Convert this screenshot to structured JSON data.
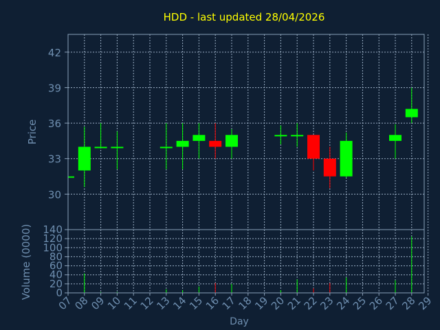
{
  "chart_data": [
    {
      "type": "candlestick",
      "title": "HDD - last updated 28/04/2026",
      "xlabel": "Day",
      "ylabel": "Price",
      "x_tick_labels": [
        "07",
        "08",
        "09",
        "10",
        "11",
        "12",
        "13",
        "14",
        "15",
        "16",
        "17",
        "18",
        "19",
        "20",
        "21",
        "22",
        "23",
        "24",
        "25",
        "26",
        "27",
        "28",
        "29"
      ],
      "y_tick_labels": [
        "30",
        "33",
        "36",
        "39",
        "42"
      ],
      "ylim": [
        27.0,
        43.5
      ],
      "grid": true,
      "up_color": "#00ff00",
      "down_color": "#ff0000",
      "candles": [
        {
          "day": "07",
          "open": 31.5,
          "high": 31.5,
          "low": 31.5,
          "close": 31.5
        },
        {
          "day": "08",
          "open": 32.0,
          "high": 35.7,
          "low": 30.6,
          "close": 34.0
        },
        {
          "day": "09",
          "open": 33.9,
          "high": 36.0,
          "low": 33.9,
          "close": 34.0
        },
        {
          "day": "10",
          "open": 33.9,
          "high": 35.3,
          "low": 32.1,
          "close": 34.0
        },
        {
          "day": "13",
          "open": 33.9,
          "high": 36.0,
          "low": 32.1,
          "close": 34.0
        },
        {
          "day": "14",
          "open": 34.0,
          "high": 36.0,
          "low": 32.1,
          "close": 34.5
        },
        {
          "day": "15",
          "open": 34.5,
          "high": 36.0,
          "low": 33.0,
          "close": 35.0
        },
        {
          "day": "16",
          "open": 34.5,
          "high": 36.0,
          "low": 33.0,
          "close": 34.0
        },
        {
          "day": "17",
          "open": 34.0,
          "high": 35.5,
          "low": 33.0,
          "close": 35.0
        },
        {
          "day": "20",
          "open": 35.0,
          "high": 35.8,
          "low": 34.2,
          "close": 35.0
        },
        {
          "day": "21",
          "open": 35.0,
          "high": 36.0,
          "low": 34.0,
          "close": 35.0
        },
        {
          "day": "22",
          "open": 35.0,
          "high": 35.0,
          "low": 32.0,
          "close": 33.0
        },
        {
          "day": "23",
          "open": 33.0,
          "high": 34.0,
          "low": 30.5,
          "close": 31.5
        },
        {
          "day": "24",
          "open": 31.5,
          "high": 35.2,
          "low": 31.4,
          "close": 34.5
        },
        {
          "day": "27",
          "open": 34.5,
          "high": 35.9,
          "low": 33.0,
          "close": 35.0
        },
        {
          "day": "28",
          "open": 36.5,
          "high": 39.0,
          "low": 36.0,
          "close": 37.2
        }
      ]
    },
    {
      "type": "bar",
      "ylabel": "Volume (0000)",
      "y_tick_labels": [
        "0",
        "20",
        "40",
        "60",
        "80",
        "100",
        "120",
        "140"
      ],
      "ylim": [
        0,
        140
      ],
      "grid": true,
      "values": [
        {
          "day": "08",
          "value": 43,
          "color": "#00ff00"
        },
        {
          "day": "09",
          "value": 2,
          "color": "#00ff00"
        },
        {
          "day": "10",
          "value": 2,
          "color": "#00ff00"
        },
        {
          "day": "13",
          "value": 8,
          "color": "#00ff00"
        },
        {
          "day": "14",
          "value": 6,
          "color": "#00ff00"
        },
        {
          "day": "15",
          "value": 14,
          "color": "#00ff00"
        },
        {
          "day": "16",
          "value": 22,
          "color": "#ff0000"
        },
        {
          "day": "17",
          "value": 20,
          "color": "#00ff00"
        },
        {
          "day": "20",
          "value": 6,
          "color": "#00ff00"
        },
        {
          "day": "21",
          "value": 30,
          "color": "#00ff00"
        },
        {
          "day": "22",
          "value": 10,
          "color": "#ff0000"
        },
        {
          "day": "23",
          "value": 22,
          "color": "#ff0000"
        },
        {
          "day": "24",
          "value": 34,
          "color": "#00ff00"
        },
        {
          "day": "27",
          "value": 28,
          "color": "#00ff00"
        },
        {
          "day": "28",
          "value": 125,
          "color": "#00ff00"
        }
      ]
    }
  ],
  "colors": {
    "background": "#0f1f33",
    "title": "#ffff00",
    "axis_text": "#6f8fb0",
    "grid": "#9aaec4",
    "frame": "#8aa0b8"
  }
}
